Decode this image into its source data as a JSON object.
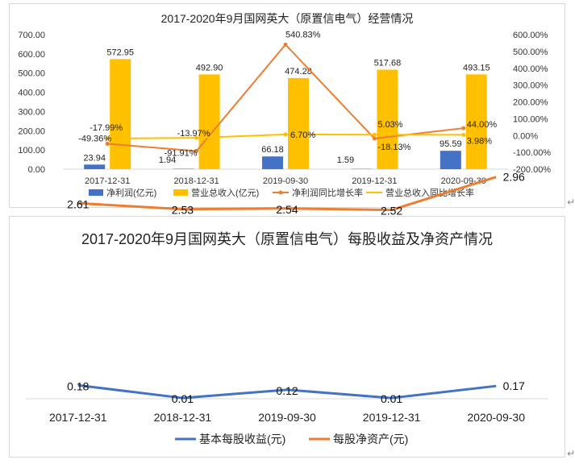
{
  "chart_data": [
    {
      "type": "bar",
      "title": "2017-2020年9月国网英大（原置信电气）经营情况",
      "categories": [
        "2017-12-31",
        "2018-12-31",
        "2019-09-30",
        "2019-12-31",
        "2020-09-30"
      ],
      "series": [
        {
          "name": "净利润(亿元)",
          "chart": "bar",
          "axis": "left",
          "color": "#4472c4",
          "values": [
            23.94,
            1.94,
            66.18,
            1.59,
            95.59
          ],
          "labels": [
            "23.94",
            "1.94",
            "66.18",
            "1.59",
            "95.59"
          ]
        },
        {
          "name": "营业总收入(亿元)",
          "chart": "bar",
          "axis": "left",
          "color": "#ffc000",
          "values": [
            572.95,
            492.9,
            474.28,
            517.68,
            493.15
          ],
          "labels": [
            "572.95",
            "492.90",
            "474.28",
            "517.68",
            "493.15"
          ]
        },
        {
          "name": "净利润同比增长率",
          "chart": "line",
          "axis": "right",
          "color": "#ed7d31",
          "values": [
            -49.36,
            -91.91,
            540.83,
            -18.13,
            44.0
          ],
          "labels": [
            "-49.36%",
            "-91.91%",
            "540.83%",
            "-18.13%",
            "44.00%"
          ]
        },
        {
          "name": "营业总收入同比增长率",
          "chart": "line",
          "axis": "right",
          "color": "#ffc000",
          "values": [
            -17.99,
            -13.97,
            6.7,
            5.03,
            3.98
          ],
          "labels": [
            "-17.99%",
            "-13.97%",
            "6.70%",
            "5.03%",
            "3.98%"
          ]
        }
      ],
      "y_left": {
        "lim": [
          0,
          700
        ],
        "ticks": [
          "0.00",
          "100.00",
          "200.00",
          "300.00",
          "400.00",
          "500.00",
          "600.00",
          "700.00"
        ]
      },
      "y_right": {
        "lim": [
          -200,
          600
        ],
        "ticks": [
          "-200.00%",
          "-100.00%",
          "0.00%",
          "100.00%",
          "200.00%",
          "300.00%",
          "400.00%",
          "500.00%",
          "600.00%"
        ]
      },
      "legend": "bottom",
      "grid": false
    },
    {
      "type": "line",
      "title": "2017-2020年9月国网英大（原置信电气）每股收益及净资产情况",
      "categories": [
        "2017-12-31",
        "2018-12-31",
        "2019-09-30",
        "2019-12-31",
        "2020-09-30"
      ],
      "series": [
        {
          "name": "基本每股收益(元)",
          "color": "#4472c4",
          "values": [
            0.18,
            0.01,
            0.12,
            0.01,
            0.17
          ],
          "labels": [
            "0.18",
            "0.01",
            "0.12",
            "0.01",
            "0.17"
          ]
        },
        {
          "name": "每股净资产(元)",
          "color": "#ed7d31",
          "values": [
            2.61,
            2.53,
            2.54,
            2.52,
            2.96
          ],
          "labels": [
            "2.61",
            "2.53",
            "2.54",
            "2.52",
            "2.96"
          ]
        }
      ],
      "legend": "bottom",
      "grid": false
    }
  ]
}
